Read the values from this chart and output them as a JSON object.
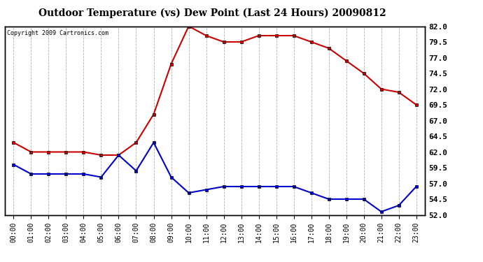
{
  "title": "Outdoor Temperature (vs) Dew Point (Last 24 Hours) 20090812",
  "copyright_text": "Copyright 2009 Cartronics.com",
  "hours": [
    "00:00",
    "01:00",
    "02:00",
    "03:00",
    "04:00",
    "05:00",
    "06:00",
    "07:00",
    "08:00",
    "09:00",
    "10:00",
    "11:00",
    "12:00",
    "13:00",
    "14:00",
    "15:00",
    "16:00",
    "17:00",
    "18:00",
    "19:00",
    "20:00",
    "21:00",
    "22:00",
    "23:00"
  ],
  "temp": [
    63.5,
    62.0,
    62.0,
    62.0,
    62.0,
    61.5,
    61.5,
    63.5,
    68.0,
    76.0,
    82.0,
    80.5,
    79.5,
    79.5,
    80.5,
    80.5,
    80.5,
    79.5,
    78.5,
    76.5,
    74.5,
    72.0,
    71.5,
    69.5
  ],
  "dew": [
    60.0,
    58.5,
    58.5,
    58.5,
    58.5,
    58.0,
    61.5,
    59.0,
    63.5,
    58.0,
    55.5,
    56.0,
    56.5,
    56.5,
    56.5,
    56.5,
    56.5,
    55.5,
    54.5,
    54.5,
    54.5,
    52.5,
    53.5,
    56.5
  ],
  "temp_color": "#cc0000",
  "dew_color": "#0000cc",
  "bg_color": "#ffffff",
  "plot_bg_color": "#ffffff",
  "grid_color": "#b0b0b0",
  "marker": "s",
  "marker_edge_color": "#000000",
  "marker_size": 3,
  "ylim": [
    52.0,
    82.0
  ],
  "yticks_right": [
    52.0,
    54.5,
    57.0,
    59.5,
    62.0,
    64.5,
    67.0,
    69.5,
    72.0,
    74.5,
    77.0,
    79.5,
    82.0
  ],
  "line_width": 1.5,
  "title_fontsize": 10,
  "copyright_fontsize": 6,
  "tick_fontsize": 7,
  "ytick_fontsize": 8
}
